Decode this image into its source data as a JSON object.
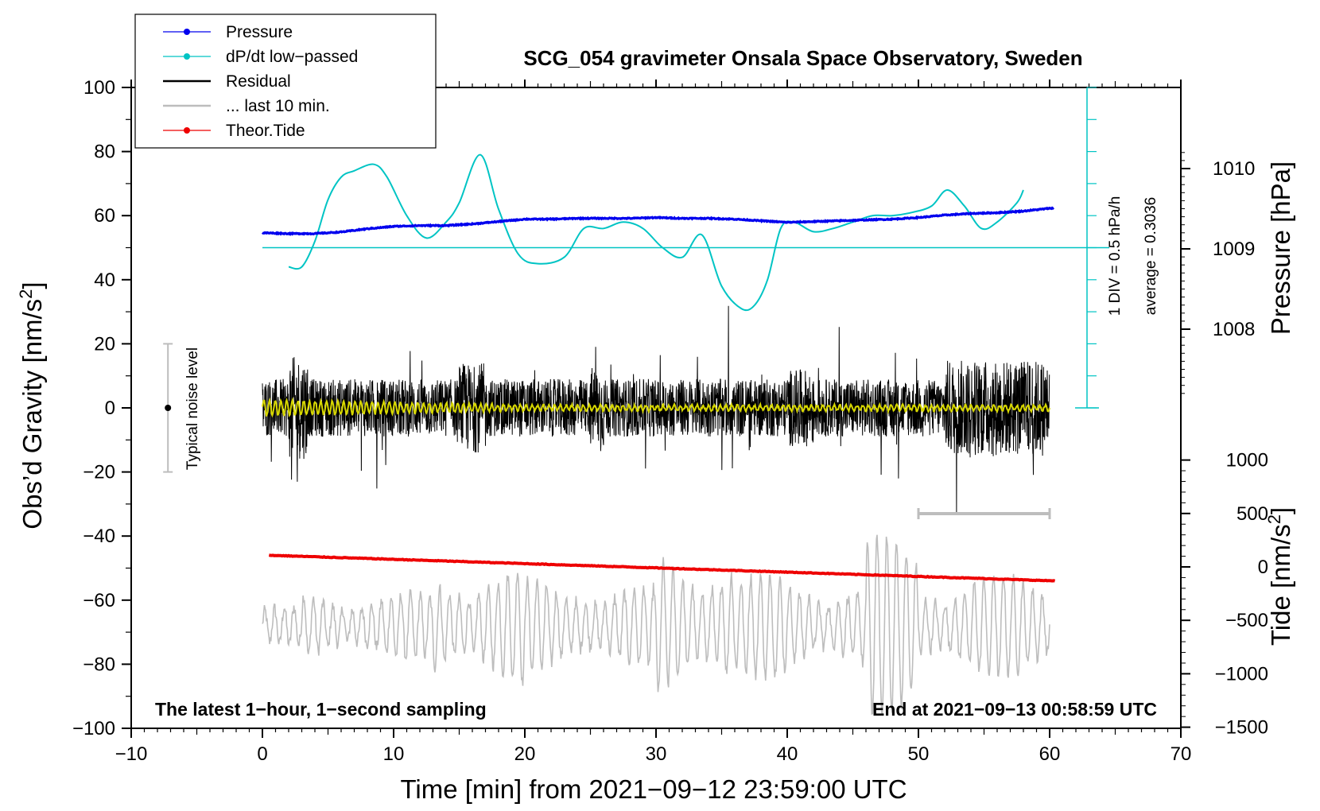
{
  "chart_data": {
    "type": "line",
    "title": "SCG_054 gravimeter Onsala Space Observatory, Sweden",
    "xlabel": "Time [min] from 2021−09−12 23:59:00 UTC",
    "ylabel_left": "Obs’d Gravity [nm/s",
    "ylabel_left_sup": "2",
    "ylabel_left_end": "]",
    "ylabel_right_pressure": "Pressure [hPa]",
    "ylabel_right_tide": "Tide [nm/s",
    "ylabel_right_tide_sup": "2",
    "ylabel_right_tide_end": "]",
    "xlim": [
      -10,
      70
    ],
    "ylim_left": [
      -100,
      100
    ],
    "pressure_ylim_hpa": [
      1007.0,
      1010.0
    ],
    "tide_ylim": [
      -1500,
      1000
    ],
    "x_ticks": [
      "−10",
      "0",
      "10",
      "20",
      "30",
      "40",
      "50",
      "60",
      "70"
    ],
    "y_ticks_left": [
      "100",
      "80",
      "60",
      "40",
      "20",
      "0",
      "−20",
      "−40",
      "−60",
      "−80",
      "−100"
    ],
    "pressure_ticks": [
      "1010",
      "1009",
      "1008"
    ],
    "tide_ticks": [
      "1000",
      "500",
      "0",
      "−500",
      "−1000",
      "−1500"
    ],
    "legend": [
      {
        "label": "Pressure",
        "color": "#0000ee",
        "marker": true
      },
      {
        "label": "dP/dt low−passed",
        "color": "#00c4c4",
        "marker": true
      },
      {
        "label": "Residual",
        "color": "#000000",
        "marker": false
      },
      {
        "label": "... last 10 min.",
        "color": "#bdbdbd",
        "marker": false
      },
      {
        "label": "Theor.Tide",
        "color": "#ee0000",
        "marker": true
      }
    ],
    "annotations": {
      "bottom_left": "The latest 1−hour, 1−second sampling",
      "bottom_right": "End at 2021−09−13 00:58:59 UTC",
      "noise": "Typical noise level",
      "div_label": "1 DIV = 0.5 hPa/h",
      "average_label": "average = 0.3036"
    },
    "noise_bar": {
      "x": -7.2,
      "center": 0,
      "half_range": 20
    },
    "last10_marker": {
      "x_start": 50,
      "x_end": 60,
      "y": -33
    },
    "dpdt_reference_level": 50,
    "series": [
      {
        "name": "Pressure",
        "units": "hPa",
        "color": "#0000ee",
        "x": [
          0,
          2,
          4,
          6,
          8,
          10,
          12,
          14,
          16,
          18,
          20,
          22,
          24,
          26,
          28,
          30,
          32,
          34,
          36,
          38,
          40,
          42,
          44,
          46,
          48,
          50,
          52,
          54,
          56,
          58,
          60.3
        ],
        "values": [
          1009.2,
          1009.19,
          1009.19,
          1009.21,
          1009.25,
          1009.28,
          1009.29,
          1009.29,
          1009.31,
          1009.34,
          1009.37,
          1009.37,
          1009.38,
          1009.38,
          1009.38,
          1009.39,
          1009.38,
          1009.38,
          1009.37,
          1009.35,
          1009.33,
          1009.34,
          1009.35,
          1009.36,
          1009.37,
          1009.39,
          1009.42,
          1009.44,
          1009.45,
          1009.47,
          1009.51
        ]
      },
      {
        "name": "dP/dt low−passed",
        "color": "#00c4c4",
        "x": [
          2,
          3,
          4,
          5,
          6,
          7,
          8.5,
          9.5,
          11,
          12.5,
          14,
          15,
          16.6,
          18,
          19.5,
          21,
          23,
          24.5,
          26,
          27.5,
          29,
          30.5,
          32,
          33.5,
          35,
          36.5,
          37.5,
          38.5,
          39.5,
          40.5,
          42,
          43.5,
          45,
          46.5,
          48,
          49.5,
          51,
          52.2,
          53.5,
          54.8,
          56,
          57.5,
          58
        ],
        "values": [
          44,
          44,
          52,
          65,
          72,
          74,
          76,
          72,
          60,
          53,
          58,
          64,
          79,
          62,
          48,
          45,
          47,
          56,
          56,
          58,
          56,
          50,
          47,
          54,
          38,
          31,
          32,
          40,
          56,
          58,
          55,
          56,
          58,
          60,
          60,
          61,
          63,
          68,
          63,
          56,
          58,
          64,
          68
        ]
      },
      {
        "name": "Residual",
        "color": "#000000",
        "x_range": [
          0,
          60
        ],
        "envelope_min": [
          -15,
          -10,
          -18,
          -20,
          -25,
          -15,
          -10,
          -12
        ],
        "envelope_max": [
          15,
          12,
          16,
          20,
          24,
          18,
          12,
          15
        ]
      },
      {
        "name": "Residual smoothed",
        "color": "#d8d800",
        "x_range": [
          0,
          60
        ],
        "amplitude_start": 2.5,
        "amplitude_end": 0.8
      },
      {
        "name": "... last 10 min.",
        "color": "#bdbdbd",
        "x_range": [
          0,
          60
        ],
        "center": -68,
        "typical_amplitude": 20
      },
      {
        "name": "Theor.Tide",
        "color": "#ee0000",
        "x": [
          0.5,
          60.5
        ],
        "values": [
          -46,
          -54
        ]
      }
    ]
  }
}
